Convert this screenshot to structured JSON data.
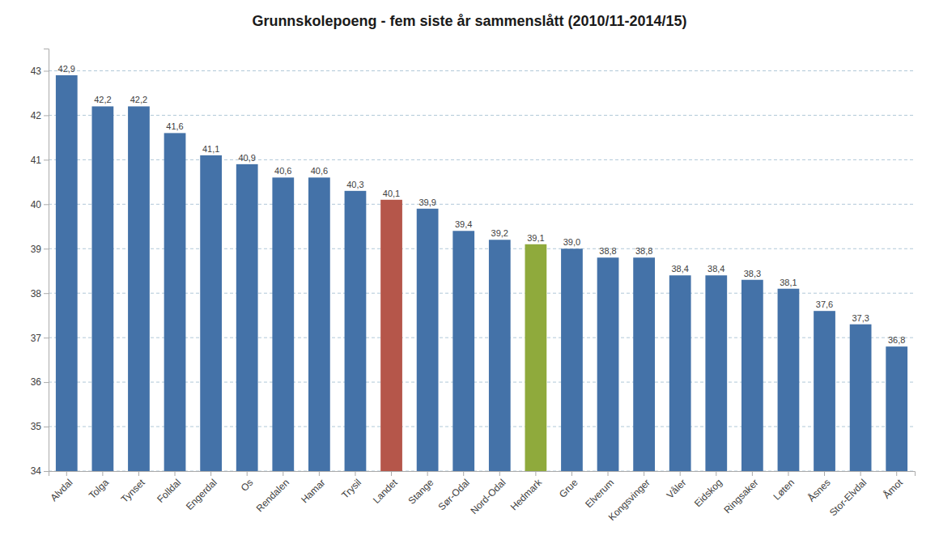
{
  "chart_data": {
    "type": "bar",
    "title": "Grunnskolepoeng - fem siste år sammenslått (2010/11-2014/15)",
    "categories": [
      "Alvdal",
      "Tolga",
      "Tynset",
      "Folldal",
      "Engerdal",
      "Os",
      "Rendalen",
      "Hamar",
      "Trysil",
      "Landet",
      "Stange",
      "Sør-Odal",
      "Nord-Odal",
      "Hedmark",
      "Grue",
      "Elverum",
      "Kongsvinger",
      "Våler",
      "Eidskog",
      "Ringsaker",
      "Løten",
      "Åsnes",
      "Stor-Elvdal",
      "Åmot"
    ],
    "values": [
      42.9,
      42.2,
      42.2,
      41.6,
      41.1,
      40.9,
      40.6,
      40.6,
      40.3,
      40.1,
      39.9,
      39.4,
      39.2,
      39.1,
      39.0,
      38.8,
      38.8,
      38.4,
      38.4,
      38.3,
      38.1,
      37.6,
      37.3,
      36.8
    ],
    "value_labels": [
      "42,9",
      "42,2",
      "42,2",
      "41,6",
      "41,1",
      "40,9",
      "40,6",
      "40,6",
      "40,3",
      "40,1",
      "39,9",
      "39,4",
      "39,2",
      "39,1",
      "39,0",
      "38,8",
      "38,8",
      "38,4",
      "38,4",
      "38,3",
      "38,1",
      "37,6",
      "37,3",
      "36,8"
    ],
    "colors": [
      "#4472a8",
      "#4472a8",
      "#4472a8",
      "#4472a8",
      "#4472a8",
      "#4472a8",
      "#4472a8",
      "#4472a8",
      "#4472a8",
      "#b5564a",
      "#4472a8",
      "#4472a8",
      "#4472a8",
      "#8faa3c",
      "#4472a8",
      "#4472a8",
      "#4472a8",
      "#4472a8",
      "#4472a8",
      "#4472a8",
      "#4472a8",
      "#4472a8",
      "#4472a8",
      "#4472a8"
    ],
    "ylim": [
      34,
      43.5
    ],
    "yticks": [
      34,
      35,
      36,
      37,
      38,
      39,
      40,
      41,
      42,
      43
    ],
    "grid": true,
    "data_labels": true
  }
}
